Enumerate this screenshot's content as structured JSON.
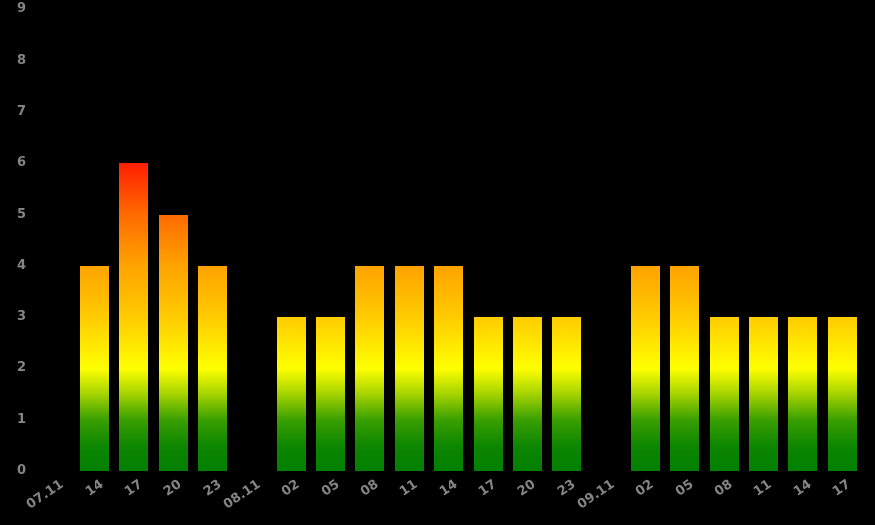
{
  "chart": {
    "background": "#000000",
    "label_color": "#858585"
  },
  "chart_data": {
    "type": "bar",
    "title": "",
    "xlabel": "",
    "ylabel": "",
    "ylim": [
      0,
      9
    ],
    "yticks": [
      "0",
      "1",
      "2",
      "3",
      "4",
      "5",
      "6",
      "7",
      "8",
      "9"
    ],
    "grid": false,
    "legend": false,
    "categories": [
      "07.11",
      "14",
      "17",
      "20",
      "23",
      "08.11",
      "02",
      "05",
      "08",
      "11",
      "14",
      "17",
      "20",
      "23",
      "09.11",
      "02",
      "05",
      "08",
      "11",
      "14",
      "17"
    ],
    "values": [
      null,
      4,
      6,
      5,
      4,
      null,
      3,
      3,
      4,
      4,
      4,
      3,
      3,
      3,
      null,
      4,
      4,
      3,
      3,
      3,
      3
    ],
    "bar_color_scale": [
      {
        "value": 0,
        "color": "#008000"
      },
      {
        "value": 0.5,
        "color": "#0E8600"
      },
      {
        "value": 1,
        "color": "#3AA000"
      },
      {
        "value": 1.5,
        "color": "#A5D300"
      },
      {
        "value": 2,
        "color": "#FFFF00"
      },
      {
        "value": 3,
        "color": "#FFCB00"
      },
      {
        "value": 4,
        "color": "#FFA300"
      },
      {
        "value": 5,
        "color": "#FF6A00"
      },
      {
        "value": 6,
        "color": "#FF1E00"
      }
    ]
  }
}
